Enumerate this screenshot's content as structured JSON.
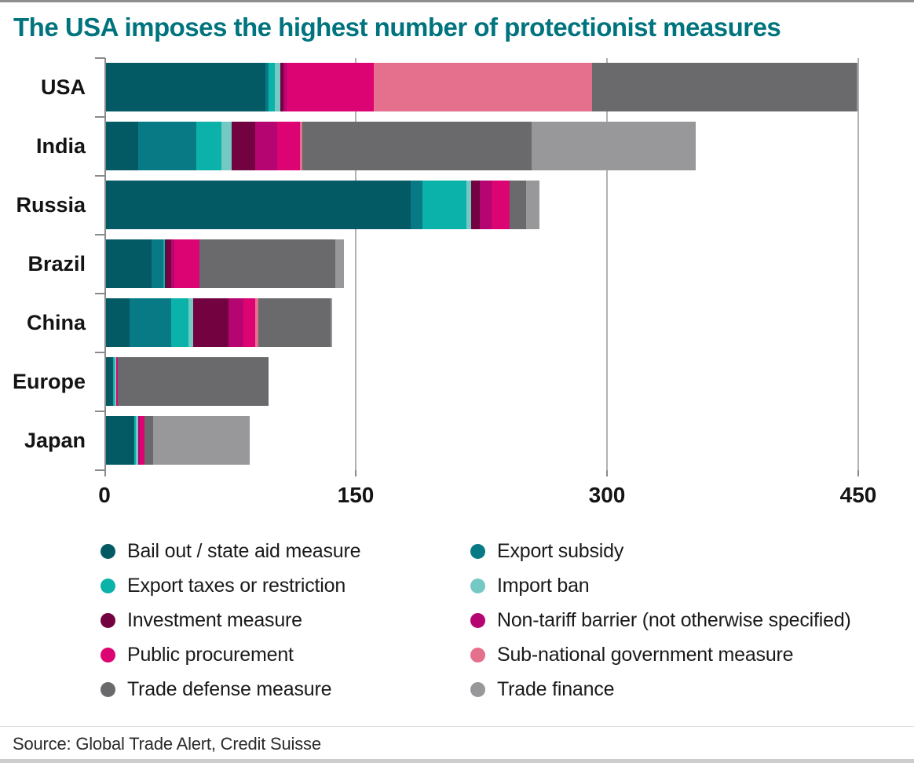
{
  "page": {
    "title": "The USA imposes the highest number of protectionist measures",
    "source": "Source: Global Trade Alert, Credit Suisse",
    "title_color": "#00747e",
    "gridline_color": "#b2b2b4",
    "axis_color": "#8a8a8a"
  },
  "chart_data": {
    "type": "bar",
    "orientation": "horizontal",
    "stacked": true,
    "title": "The USA imposes the highest number of protectionist measures",
    "categories": [
      "USA",
      "India",
      "Russia",
      "Brazil",
      "China",
      "Europe",
      "Japan"
    ],
    "xlabel": "",
    "ylabel": "",
    "xlim": [
      0,
      450
    ],
    "x_ticks": [
      "0",
      "150",
      "300",
      "450"
    ],
    "x_tick_values": [
      0,
      150,
      300,
      450
    ],
    "grid": "vertical",
    "legend_position": "bottom-two-columns",
    "series": [
      {
        "name": "Bail out / state aid measure",
        "color": "#045a64",
        "values": [
          95,
          19,
          182,
          27,
          14,
          4,
          17
        ]
      },
      {
        "name": "Export subsidy",
        "color": "#077a85",
        "values": [
          2,
          35,
          7,
          7,
          25,
          0,
          0
        ]
      },
      {
        "name": "Export taxes or restriction",
        "color": "#0bb2aa",
        "values": [
          4,
          15,
          26,
          1,
          10,
          1,
          1
        ]
      },
      {
        "name": "Import ban",
        "color": "#74c9c4",
        "values": [
          3,
          6,
          3,
          0,
          3,
          1,
          1
        ]
      },
      {
        "name": "Investment measure",
        "color": "#730340",
        "values": [
          2,
          14,
          5,
          4,
          21,
          0,
          0
        ]
      },
      {
        "name": "Non-tariff barrier (not otherwise specified)",
        "color": "#b50570",
        "values": [
          2,
          13,
          7,
          2,
          9,
          0,
          1
        ]
      },
      {
        "name": "Public procurement",
        "color": "#dc0373",
        "values": [
          52,
          14,
          11,
          15,
          7,
          1,
          3
        ]
      },
      {
        "name": "Sub-national government measure",
        "color": "#e5708e",
        "values": [
          130,
          1,
          0,
          0,
          2,
          0,
          0
        ]
      },
      {
        "name": "Trade defense measure",
        "color": "#6a6a6d",
        "values": [
          158,
          137,
          10,
          81,
          43,
          90,
          5
        ]
      },
      {
        "name": "Trade finance",
        "color": "#98989b",
        "values": [
          1,
          98,
          8,
          5,
          1,
          0,
          58
        ]
      }
    ]
  }
}
